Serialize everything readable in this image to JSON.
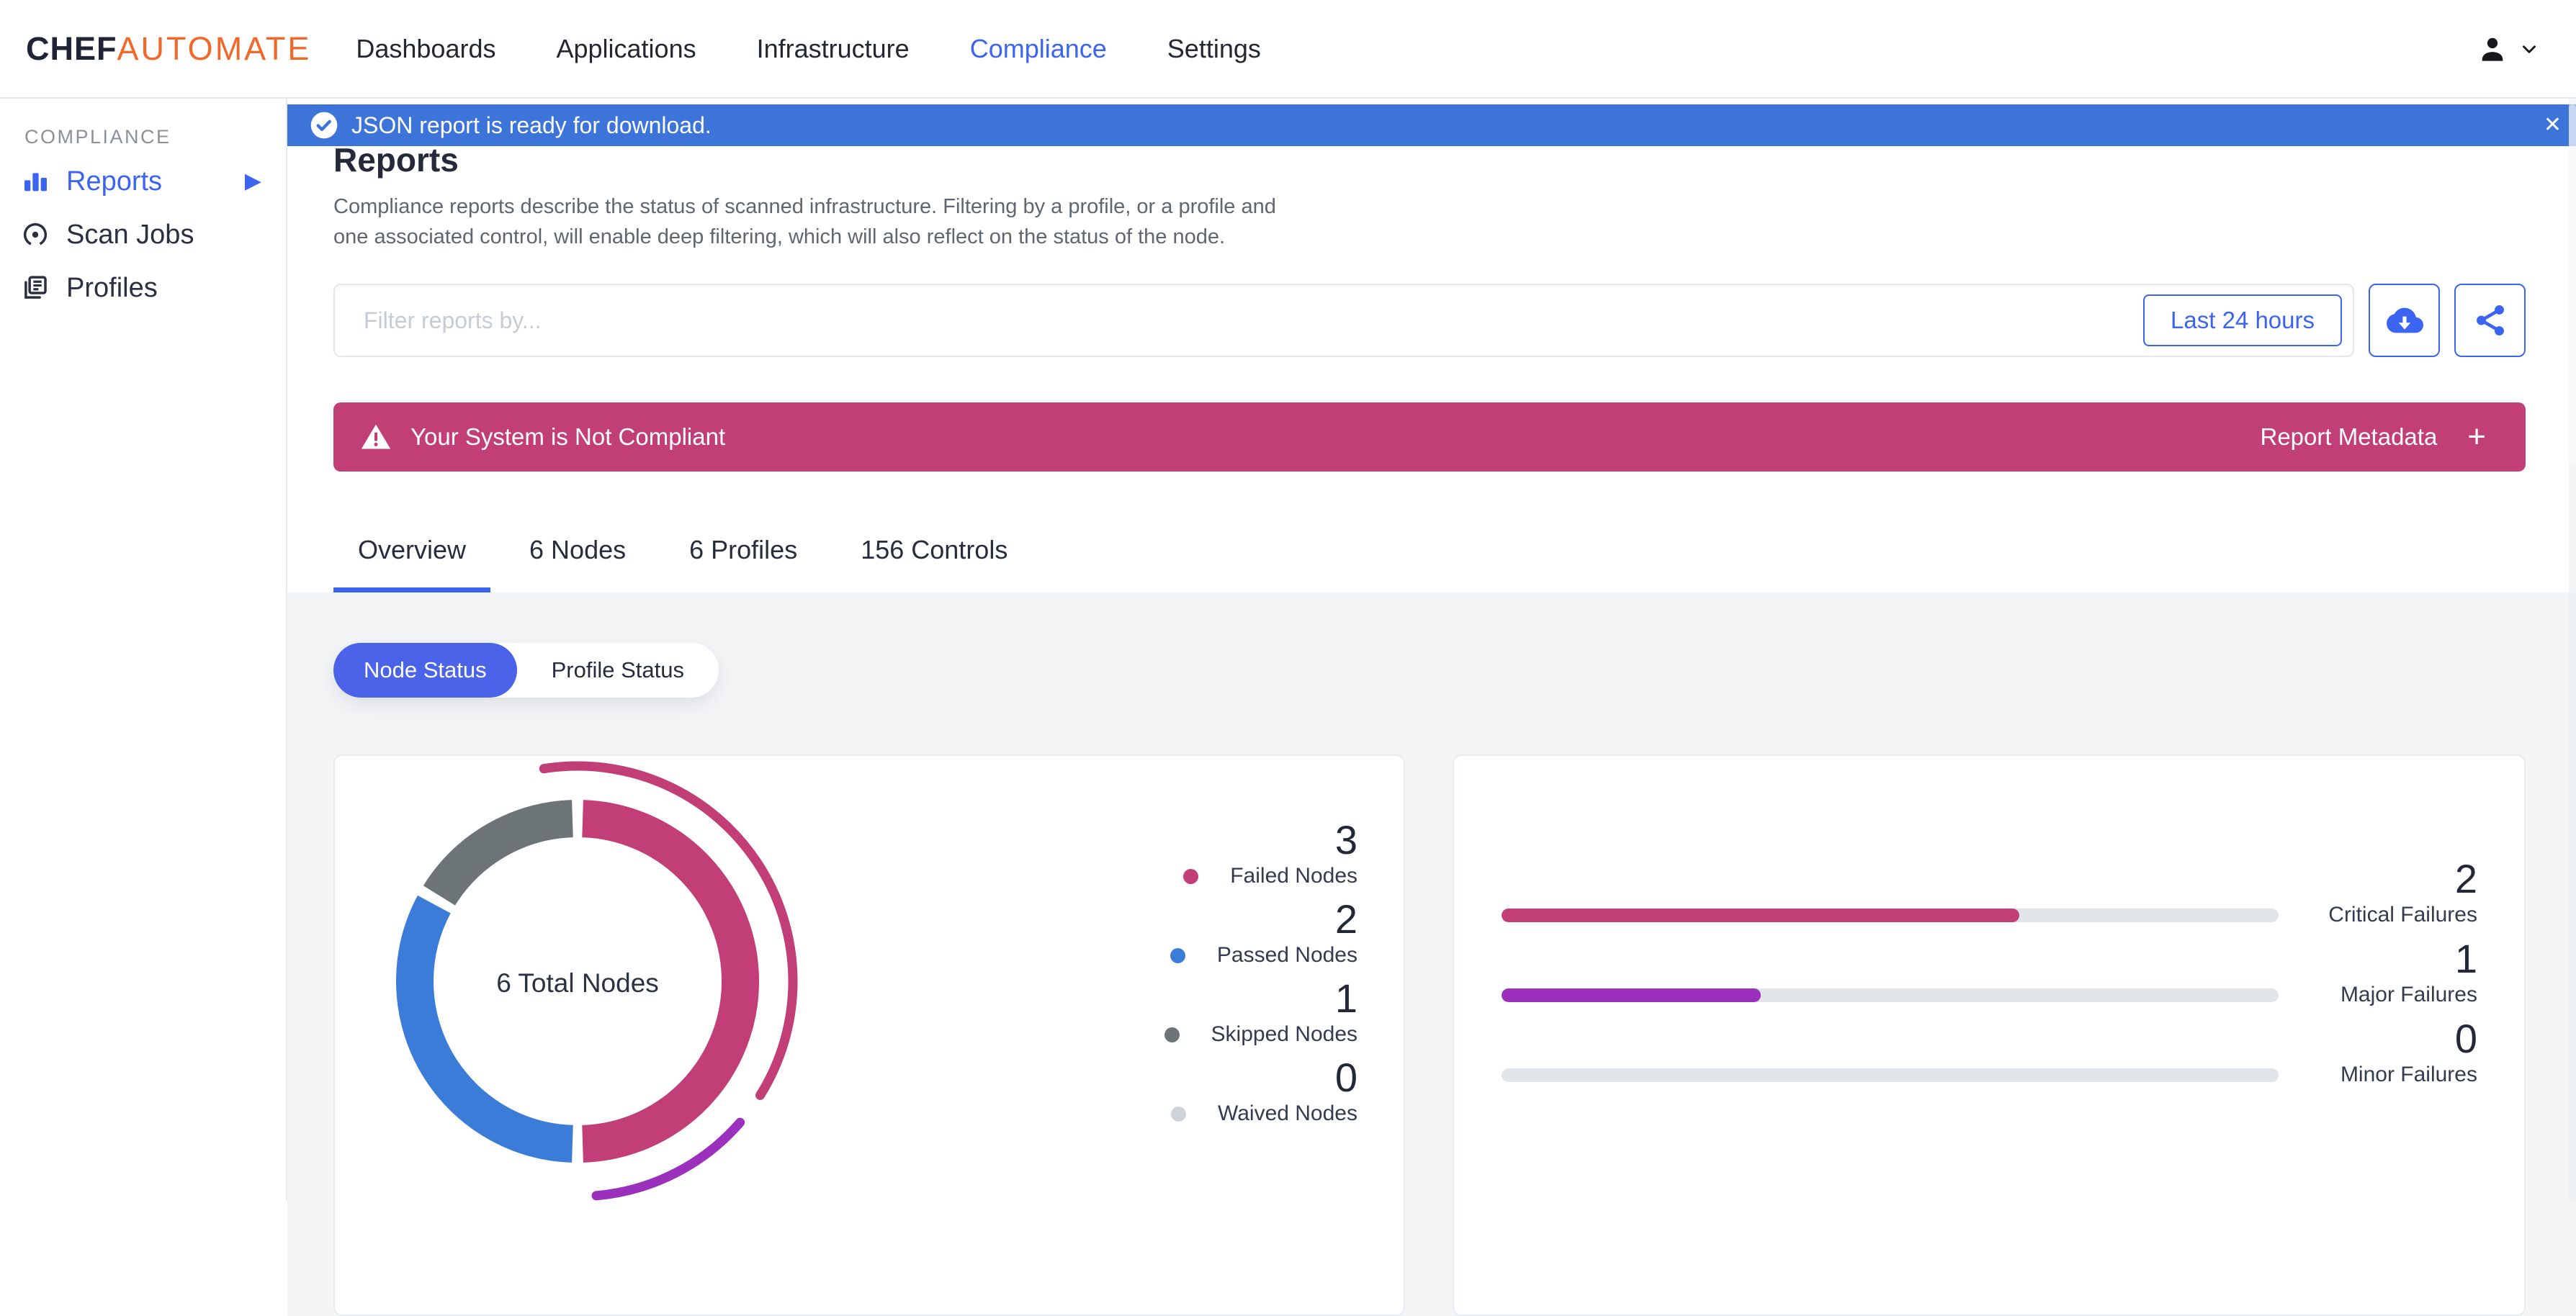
{
  "nav": {
    "logo_chef": "CHEF",
    "logo_automate": "AUTOMATE",
    "items": [
      {
        "label": "Dashboards",
        "active": false
      },
      {
        "label": "Applications",
        "active": false
      },
      {
        "label": "Infrastructure",
        "active": false
      },
      {
        "label": "Compliance",
        "active": true
      },
      {
        "label": "Settings",
        "active": false
      }
    ]
  },
  "banner": {
    "text": "JSON report is ready for download."
  },
  "sidebar": {
    "section_label": "COMPLIANCE",
    "items": [
      {
        "label": "Reports",
        "icon": "bar-chart-icon",
        "active": true,
        "expandable": true
      },
      {
        "label": "Scan Jobs",
        "icon": "radar-icon",
        "active": false
      },
      {
        "label": "Profiles",
        "icon": "documents-icon",
        "active": false
      }
    ]
  },
  "page": {
    "title": "Reports",
    "description": [
      "Compliance reports describe the status of scanned infrastructure. Filtering by a profile, or a profile and",
      "one associated control, will enable deep filtering, which will also reflect on the status of the node."
    ]
  },
  "filters": {
    "placeholder": "Filter reports by...",
    "time_range": "Last 24 hours"
  },
  "compliance_banner": {
    "text": "Your System is Not Compliant",
    "metadata_label": "Report Metadata"
  },
  "tabs": [
    {
      "label": "Overview",
      "active": true
    },
    {
      "label": "6 Nodes",
      "active": false
    },
    {
      "label": "6 Profiles",
      "active": false
    },
    {
      "label": "156 Controls",
      "active": false
    }
  ],
  "status_toggle": [
    {
      "label": "Node Status",
      "active": true
    },
    {
      "label": "Profile Status",
      "active": false
    }
  ],
  "glyphs": {
    "close": "✕",
    "expand_caret": "▶",
    "plus": "+"
  },
  "colors": {
    "accent_blue": "#3b64f1",
    "banner_blue": "#3d74da",
    "pill_blue": "#4b63e9",
    "brand_orange": "#f2682a",
    "failed_magenta": "#c23e76",
    "major_purple": "#9a30bb",
    "passed_blue": "#3b7cd9",
    "skipped_gray": "#6d7477",
    "waived_gray": "#ccd3d9",
    "track_gray": "#e1e4e8"
  },
  "chart_data": [
    {
      "type": "pie",
      "subtype": "donut",
      "center_label": "6 Total Nodes",
      "total": 6,
      "legend_position": "right",
      "slices": [
        {
          "label": "Failed Nodes",
          "value": 3,
          "color": "#c23e76"
        },
        {
          "label": "Passed Nodes",
          "value": 2,
          "color": "#3b7cd9"
        },
        {
          "label": "Skipped Nodes",
          "value": 1,
          "color": "#6d7477"
        },
        {
          "label": "Waived Nodes",
          "value": 0,
          "color": "#ccd3d9"
        }
      ],
      "outer_arcs": [
        {
          "label": "Critical Failures",
          "value": 2,
          "color": "#c23e76",
          "start_deg": -9,
          "end_deg": 122
        },
        {
          "label": "Major Failures",
          "value": 1,
          "color": "#9a30bb",
          "start_deg": 131,
          "end_deg": 175
        }
      ]
    },
    {
      "type": "bar",
      "orientation": "horizontal",
      "max": 3,
      "xlim": [
        0,
        3
      ],
      "bars": [
        {
          "label": "Critical Failures",
          "value": 2,
          "color": "#c23e76"
        },
        {
          "label": "Major Failures",
          "value": 1,
          "color": "#9a30bb"
        },
        {
          "label": "Minor Failures",
          "value": 0,
          "color": "#e1e4e8"
        }
      ]
    }
  ]
}
